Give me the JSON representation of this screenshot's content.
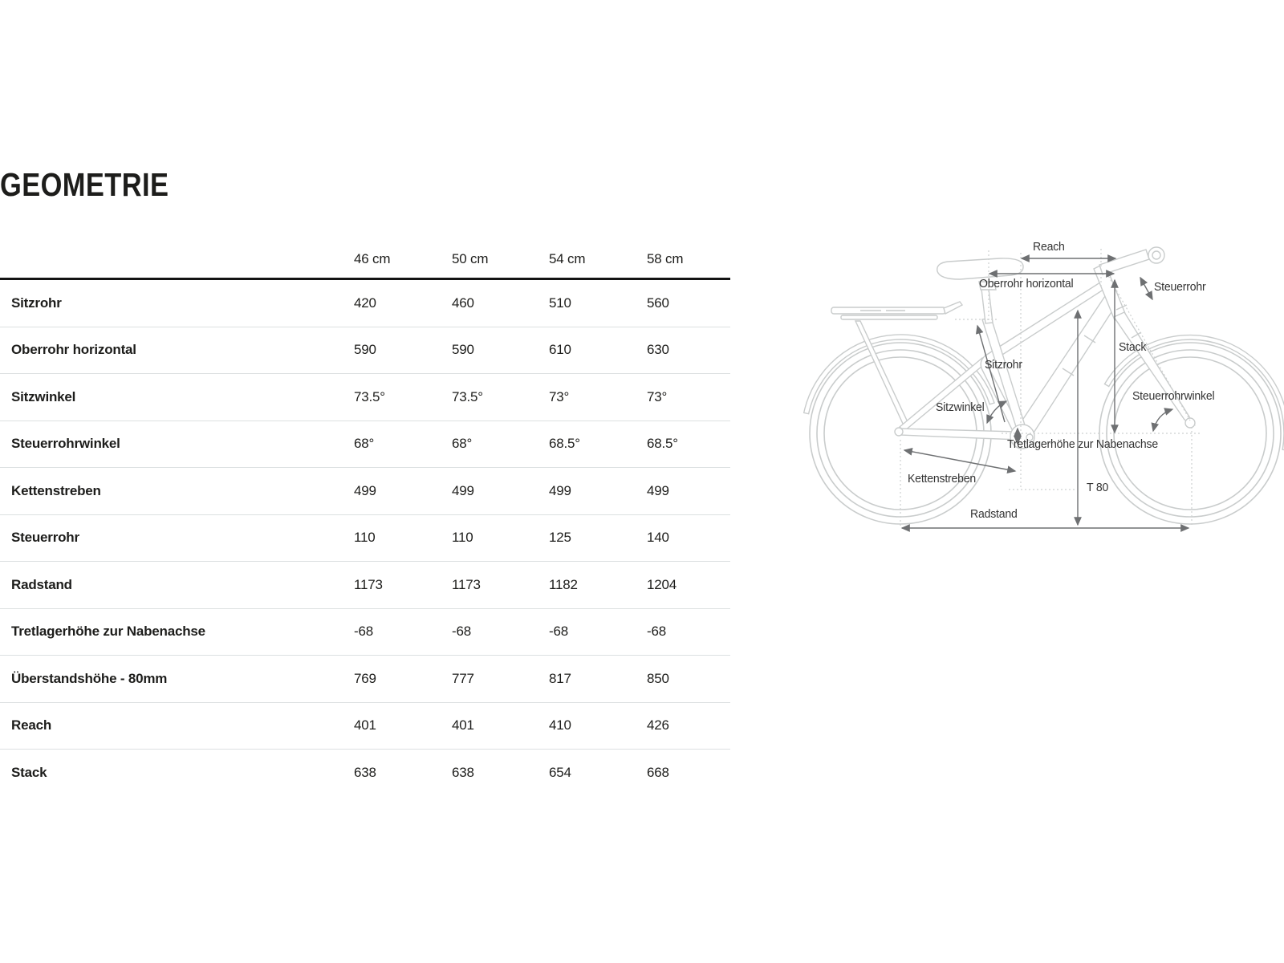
{
  "page": {
    "title": "GEOMETRIE"
  },
  "table": {
    "size_headers": [
      "46 cm",
      "50 cm",
      "54 cm",
      "58 cm"
    ],
    "rows": [
      {
        "label": "Sitzrohr",
        "values": [
          "420",
          "460",
          "510",
          "560"
        ]
      },
      {
        "label": "Oberrohr horizontal",
        "values": [
          "590",
          "590",
          "610",
          "630"
        ]
      },
      {
        "label": "Sitzwinkel",
        "values": [
          "73.5°",
          "73.5°",
          "73°",
          "73°"
        ]
      },
      {
        "label": "Steuerrohrwinkel",
        "values": [
          "68°",
          "68°",
          "68.5°",
          "68.5°"
        ]
      },
      {
        "label": "Kettenstreben",
        "values": [
          "499",
          "499",
          "499",
          "499"
        ]
      },
      {
        "label": "Steuerrohr",
        "values": [
          "110",
          "110",
          "125",
          "140"
        ]
      },
      {
        "label": "Radstand",
        "values": [
          "1173",
          "1173",
          "1182",
          "1204"
        ]
      },
      {
        "label": "Tretlagerhöhe zur Nabenachse",
        "values": [
          "-68",
          "-68",
          "-68",
          "-68"
        ]
      },
      {
        "label": "Überstandshöhe - 80mm",
        "values": [
          "769",
          "777",
          "817",
          "850"
        ]
      },
      {
        "label": "Reach",
        "values": [
          "401",
          "401",
          "410",
          "426"
        ]
      },
      {
        "label": "Stack",
        "values": [
          "638",
          "638",
          "654",
          "668"
        ]
      }
    ]
  },
  "diagram": {
    "labels": {
      "reach": "Reach",
      "oberrohr_horizontal": "Oberrohr horizontal",
      "steuerrohr": "Steuerrohr",
      "sitzrohr": "Sitzrohr",
      "stack": "Stack",
      "sitzwinkel": "Sitzwinkel",
      "steuerrohrwinkel": "Steuerrohrwinkel",
      "tretlagerhoehe": "Tretlagerhöhe zur Nabenachse",
      "kettenstreben": "Kettenstreben",
      "t80": "T 80",
      "radstand": "Radstand"
    }
  },
  "colors": {
    "text": "#1d1d1b",
    "header_rule": "#141414",
    "row_rule": "#dce0e1",
    "bike_outline": "#c9cccc",
    "dotted": "#cdd0d0",
    "dimension": "#6e7072"
  }
}
